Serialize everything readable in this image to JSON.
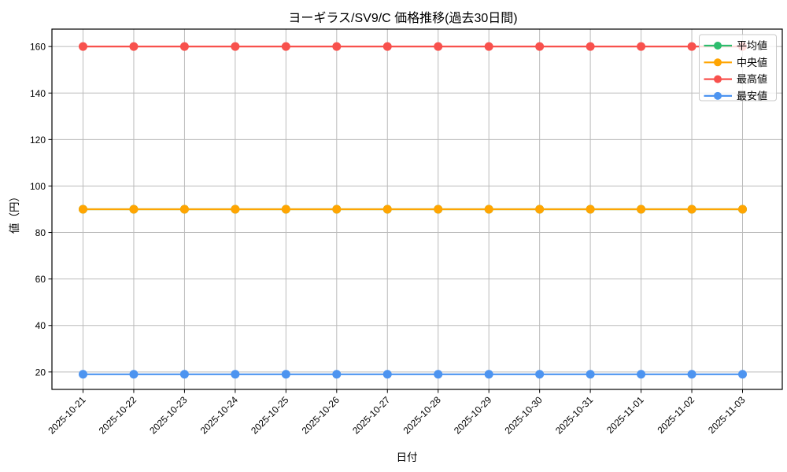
{
  "chart_data": {
    "type": "line",
    "title": "ヨーギラス/SV9/C 価格推移(過去30日間)",
    "xlabel": "日付",
    "ylabel": "値（円）",
    "categories": [
      "2025-10-21",
      "2025-10-22",
      "2025-10-23",
      "2025-10-24",
      "2025-10-25",
      "2025-10-26",
      "2025-10-27",
      "2025-10-28",
      "2025-10-29",
      "2025-10-30",
      "2025-10-31",
      "2025-11-01",
      "2025-11-02",
      "2025-11-03"
    ],
    "series": [
      {
        "key": "average",
        "name": "平均値",
        "color": "#2dbd6e",
        "values": [
          90,
          90,
          90,
          90,
          90,
          90,
          90,
          90,
          90,
          90,
          90,
          90,
          90,
          90
        ]
      },
      {
        "key": "median",
        "name": "中央値",
        "color": "#ffa502",
        "values": [
          90,
          90,
          90,
          90,
          90,
          90,
          90,
          90,
          90,
          90,
          90,
          90,
          90,
          90
        ]
      },
      {
        "key": "max",
        "name": "最高値",
        "color": "#f8514d",
        "values": [
          160,
          160,
          160,
          160,
          160,
          160,
          160,
          160,
          160,
          160,
          160,
          160,
          160,
          160
        ]
      },
      {
        "key": "min",
        "name": "最安値",
        "color": "#4d94f0",
        "values": [
          19,
          19,
          19,
          19,
          19,
          19,
          19,
          19,
          19,
          19,
          19,
          19,
          19,
          19
        ]
      }
    ],
    "yticks": [
      20,
      40,
      60,
      80,
      100,
      120,
      140,
      160
    ],
    "ylim": [
      12.5,
      167.5
    ],
    "grid": true,
    "grid_color": "#bbbbbb",
    "legend_position": "upper right"
  }
}
